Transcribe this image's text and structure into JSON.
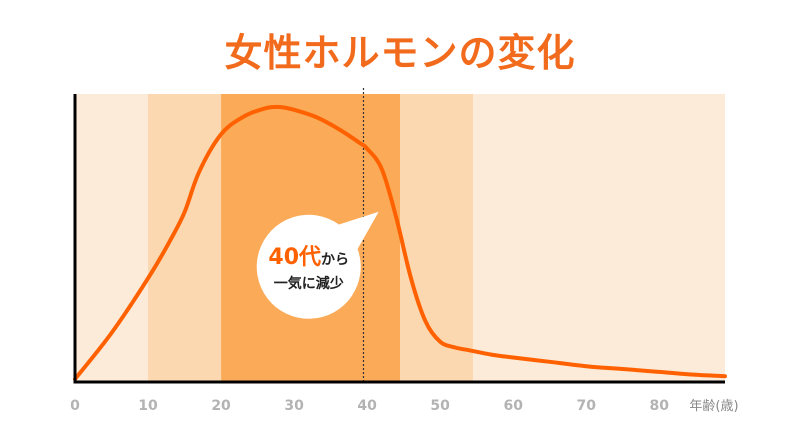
{
  "chart_data": {
    "type": "line",
    "title": "女性ホルモンの変化",
    "xlabel": "年齢(歳)",
    "ylabel": "",
    "xlim": [
      0,
      89
    ],
    "ylim": [
      0,
      100
    ],
    "x_ticks": [
      0,
      10,
      20,
      30,
      40,
      50,
      60,
      70,
      80
    ],
    "grid": false,
    "bands": [
      {
        "from": 0,
        "to": 10,
        "color": "#fdebd9"
      },
      {
        "from": 10,
        "to": 20,
        "color": "#fcd8b0"
      },
      {
        "from": 20,
        "to": 44.5,
        "color": "#fbaa57"
      },
      {
        "from": 44.5,
        "to": 54.5,
        "color": "#fcd8b0"
      },
      {
        "from": 54.5,
        "to": 89,
        "color": "#fdebd9"
      }
    ],
    "marker_x": 39.5,
    "series": [
      {
        "name": "",
        "color": "#ff6100",
        "x": [
          0,
          5,
          10,
          13,
          15,
          17,
          20,
          23,
          26,
          28,
          30,
          33,
          36,
          39,
          40,
          42,
          44,
          46,
          48,
          50,
          52,
          54,
          57,
          60,
          65,
          70,
          75,
          80,
          85,
          89
        ],
        "y": [
          1,
          17,
          36,
          49,
          59,
          73,
          86,
          92,
          95,
          95.5,
          94.5,
          92,
          88,
          83,
          81,
          74,
          57,
          36,
          21,
          14,
          12,
          11,
          9.5,
          8.5,
          7,
          5.5,
          4.5,
          3.5,
          2.5,
          2
        ]
      }
    ],
    "annotation": {
      "x": 32,
      "y": 40,
      "line1_emph": "40代",
      "line1_rest": "から",
      "line2": "一気に減少"
    }
  }
}
